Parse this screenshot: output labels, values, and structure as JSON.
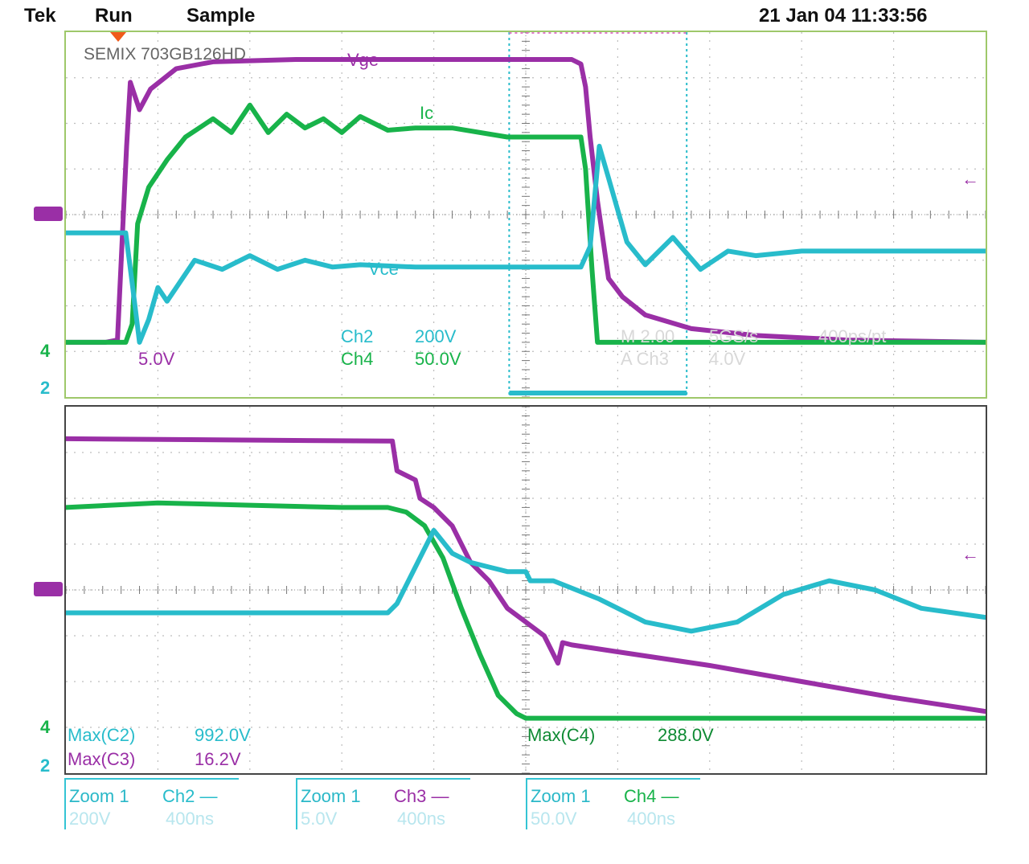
{
  "header": {
    "brand": "Tek",
    "mode": "Run",
    "acquire": "Sample",
    "timestamp": "21 Jan 04 11:33:56"
  },
  "colors": {
    "vge": "#9a2fa6",
    "ic": "#18b34a",
    "vce": "#28bccb",
    "grid": "#bdbdbd",
    "marker": "#f05a1a"
  },
  "upper": {
    "device": "SEMIX 703GB126HD",
    "trace_labels": {
      "vge": "Vge",
      "ic": "Ic",
      "vce": "Vce"
    },
    "ch3_scale": "5.0V",
    "ch2_name": "Ch2",
    "ch2_scale": "200V",
    "ch4_name": "Ch4",
    "ch4_scale": "50.0V",
    "horiz_faint": "M 2.00",
    "rate_faint": "5GS/s",
    "res_faint": "400ps/pt",
    "trig_faint": "A  Ch3",
    "trig_level_faint": "4.0V",
    "ref_marker_4": "4",
    "ref_marker_2": "2"
  },
  "lower": {
    "meas": [
      {
        "label": "Max(C2)",
        "value": "992.0V"
      },
      {
        "label": "Max(C3)",
        "value": "16.2V"
      },
      {
        "label": "Max(C4)",
        "value": "288.0V"
      }
    ],
    "ref_marker_4": "4",
    "ref_marker_2": "2"
  },
  "zoom_boxes": [
    {
      "zoom": "Zoom 1",
      "ch": "Ch2 —",
      "scale": "200V",
      "time": "400ns"
    },
    {
      "zoom": "Zoom 1",
      "ch": "Ch3 —",
      "scale": "5.0V",
      "time": "400ns"
    },
    {
      "zoom": "Zoom 1",
      "ch": "Ch4 —",
      "scale": "50.0V",
      "time": "400ns"
    }
  ],
  "chart_data": [
    {
      "type": "line",
      "title": "",
      "x_divisions": 10,
      "y_divisions": 8,
      "grid": true,
      "series": [
        {
          "name": "Vge",
          "x": [
            0,
            0.43,
            0.56,
            0.66,
            0.7,
            0.8,
            0.92,
            1.2,
            1.6,
            2.5,
            4,
            5,
            5.5,
            5.6,
            5.65,
            5.7,
            5.78,
            5.9,
            6.05,
            6.3,
            6.8,
            7.5,
            8.5,
            10
          ],
          "y": [
            1.2,
            1.2,
            1.25,
            5.5,
            6.9,
            6.3,
            6.75,
            7.2,
            7.35,
            7.4,
            7.4,
            7.4,
            7.4,
            7.3,
            6.8,
            5.7,
            4.3,
            2.6,
            2.2,
            1.8,
            1.5,
            1.35,
            1.25,
            1.2
          ]
        },
        {
          "name": "Ic",
          "x": [
            0,
            0.65,
            0.72,
            0.78,
            0.9,
            1.1,
            1.3,
            1.6,
            1.8,
            2.0,
            2.2,
            2.4,
            2.6,
            2.8,
            3.0,
            3.2,
            3.5,
            3.8,
            4.2,
            4.8,
            5.5,
            5.6,
            5.65,
            5.72,
            5.78,
            6.0,
            7.0,
            8.5,
            10
          ],
          "y": [
            1.2,
            1.2,
            1.6,
            3.8,
            4.6,
            5.2,
            5.7,
            6.1,
            5.8,
            6.4,
            5.8,
            6.2,
            5.9,
            6.1,
            5.8,
            6.15,
            5.85,
            5.9,
            5.9,
            5.7,
            5.7,
            5.7,
            5.0,
            2.8,
            1.2,
            1.2,
            1.2,
            1.2,
            1.2
          ]
        },
        {
          "name": "Vce",
          "x": [
            0,
            0.65,
            0.72,
            0.8,
            0.9,
            1.0,
            1.1,
            1.4,
            1.7,
            2.0,
            2.3,
            2.6,
            2.9,
            3.2,
            3.8,
            4.5,
            5.5,
            5.55,
            5.6,
            5.7,
            5.8,
            5.9,
            6.1,
            6.3,
            6.6,
            6.9,
            7.2,
            7.5,
            8.0,
            9.0,
            10
          ],
          "y": [
            3.6,
            3.6,
            2.5,
            1.2,
            1.7,
            2.4,
            2.1,
            3.0,
            2.8,
            3.1,
            2.8,
            3.0,
            2.85,
            2.9,
            2.85,
            2.85,
            2.85,
            2.85,
            2.85,
            3.3,
            5.5,
            4.8,
            3.4,
            2.9,
            3.5,
            2.8,
            3.2,
            3.1,
            3.2,
            3.2,
            3.2
          ]
        }
      ]
    },
    {
      "type": "line",
      "title": "",
      "x_divisions": 10,
      "y_divisions": 8,
      "grid": true,
      "series": [
        {
          "name": "Vge",
          "x": [
            0,
            3.5,
            3.55,
            3.6,
            3.8,
            3.85,
            4.0,
            4.2,
            4.4,
            4.6,
            4.8,
            5.0,
            5.2,
            5.35,
            5.4,
            5.5,
            6.0,
            7.0,
            8.0,
            9.0,
            10
          ],
          "y": [
            7.3,
            7.25,
            7.25,
            6.6,
            6.4,
            6.0,
            5.8,
            5.4,
            4.6,
            4.2,
            3.6,
            3.3,
            3.0,
            2.4,
            2.85,
            2.8,
            2.65,
            2.35,
            2.0,
            1.65,
            1.35
          ]
        },
        {
          "name": "Ic",
          "x": [
            0,
            1,
            2,
            3,
            3.5,
            3.7,
            3.9,
            4.1,
            4.3,
            4.5,
            4.7,
            4.9,
            5.0,
            5.2,
            10
          ],
          "y": [
            5.8,
            5.9,
            5.85,
            5.8,
            5.8,
            5.7,
            5.4,
            4.7,
            3.6,
            2.6,
            1.7,
            1.3,
            1.2,
            1.2,
            1.2
          ]
        },
        {
          "name": "Vce",
          "x": [
            0,
            2,
            3,
            3.5,
            3.6,
            3.8,
            4.0,
            4.2,
            4.4,
            4.6,
            4.8,
            5.0,
            5.05,
            5.3,
            5.8,
            6.3,
            6.8,
            7.3,
            7.8,
            8.3,
            8.8,
            9.3,
            10
          ],
          "y": [
            3.5,
            3.5,
            3.5,
            3.5,
            3.7,
            4.5,
            5.3,
            4.8,
            4.6,
            4.5,
            4.4,
            4.4,
            4.2,
            4.2,
            3.8,
            3.3,
            3.1,
            3.3,
            3.9,
            4.2,
            4.0,
            3.6,
            3.4
          ]
        }
      ]
    }
  ]
}
